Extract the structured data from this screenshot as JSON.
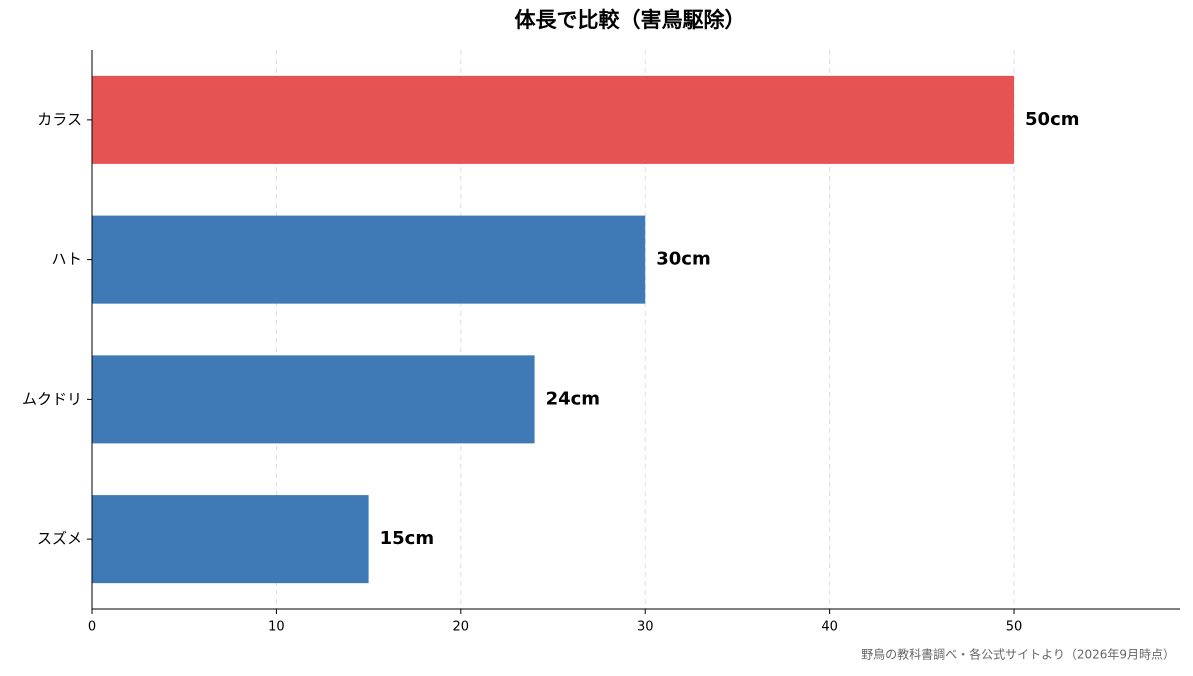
{
  "chart_data": {
    "type": "barh",
    "title": "体長で比較（害鳥駆除）",
    "categories": [
      "カラス",
      "ハト",
      "ムクドリ",
      "スズメ"
    ],
    "values": [
      50,
      30,
      24,
      15
    ],
    "value_labels": [
      "50cm",
      "30cm",
      "24cm",
      "15cm"
    ],
    "colors": [
      "#e65353",
      "#3f7ab6",
      "#3f7ab6",
      "#3f7ab6"
    ],
    "xlim": [
      0,
      59
    ],
    "xticks": [
      0,
      10,
      20,
      30,
      40,
      50
    ],
    "grid": true,
    "source": "野鳥の教科書調べ・各公式サイトより（2026年9月時点）"
  }
}
